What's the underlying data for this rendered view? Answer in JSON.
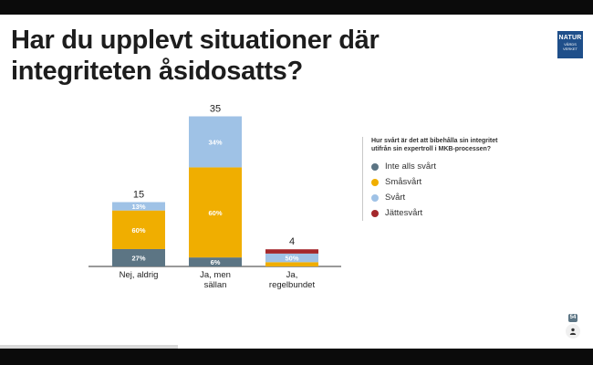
{
  "page": {
    "title": "Har du upplevt situationer där integriteten åsidosatts?",
    "logo": {
      "line1": "NATUR",
      "line2": "VÅRDS",
      "line3": "VERKET"
    },
    "participants": "54"
  },
  "colors": {
    "inte_alls_svart": "#5c7584",
    "smasvart": "#f0ae00",
    "svart": "#9fc2e6",
    "jattesvart": "#a4282c"
  },
  "chart_data": {
    "type": "bar",
    "stacked": true,
    "categories": [
      "Nej, aldrig",
      "Ja, men sällan",
      "Ja, regelbundet"
    ],
    "category_lines": [
      [
        "Nej, aldrig"
      ],
      [
        "Ja, men",
        "sällan"
      ],
      [
        "Ja,",
        "regelbundet"
      ]
    ],
    "totals": [
      15,
      35,
      4
    ],
    "series": [
      {
        "name": "Inte alls svårt",
        "color": "#5c7584",
        "percent": [
          27,
          6,
          0
        ],
        "labels": [
          "27%",
          "6%",
          ""
        ]
      },
      {
        "name": "Småsvårt",
        "color": "#f0ae00",
        "percent": [
          60,
          60,
          25
        ],
        "labels": [
          "60%",
          "60%",
          ""
        ]
      },
      {
        "name": "Svårt",
        "color": "#9fc2e6",
        "percent": [
          13,
          34,
          50
        ],
        "labels": [
          "13%",
          "34%",
          "50%"
        ]
      },
      {
        "name": "Jättesvårt",
        "color": "#a4282c",
        "percent": [
          0,
          0,
          25
        ],
        "labels": [
          "",
          "",
          ""
        ]
      }
    ],
    "legend": {
      "title": "Hur svårt är det att bibehålla sin integritet utifrån sin expertroll i MKB-processen?",
      "position": "right"
    }
  }
}
